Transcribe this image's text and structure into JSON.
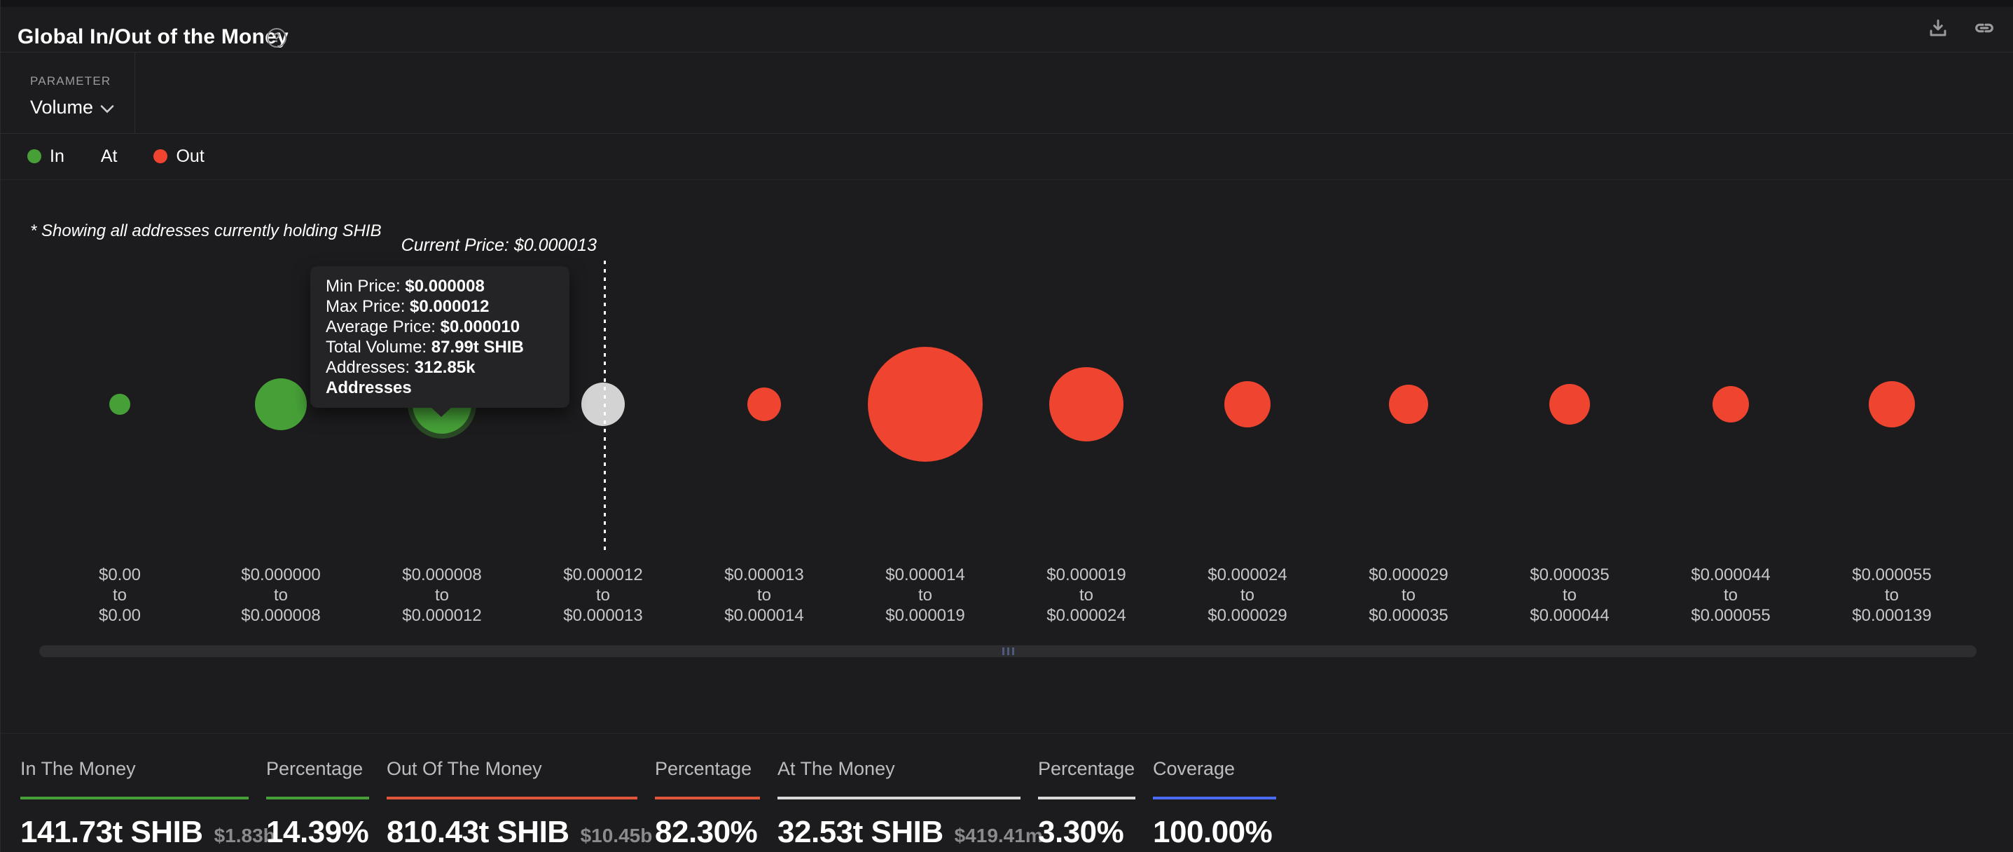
{
  "colors": {
    "in": "#46a037",
    "at": "#d3d3d3",
    "out": "#ee4430",
    "in_underline": "#46a037",
    "out_underline": "#e0563a",
    "at_underline": "#d9d9d9",
    "coverage_underline": "#4a6cf5",
    "grip_blue": "#4c5a7d"
  },
  "header": {
    "title": "Global In/Out of the Money",
    "help_glyph": "?",
    "actions": [
      {
        "name": "download",
        "icon": "download-icon"
      },
      {
        "name": "copy-link",
        "icon": "link-icon"
      }
    ]
  },
  "parameter": {
    "label": "PARAMETER",
    "value": "Volume"
  },
  "legend": [
    {
      "label": "In",
      "color": "#46a037"
    },
    {
      "label": "At",
      "color": null
    },
    {
      "label": "Out",
      "color": "#ee4430"
    }
  ],
  "chart": {
    "note": "* Showing all addresses currently holding SHIB",
    "current_price_label": "Current Price: $0.000013",
    "to_label": "to",
    "tooltip": [
      {
        "label": "Min Price: ",
        "value": "$0.000008"
      },
      {
        "label": "Max Price: ",
        "value": "$0.000012"
      },
      {
        "label": "Average Price: ",
        "value": "$0.000010"
      },
      {
        "label": "Total Volume: ",
        "value": "87.99t SHIB"
      },
      {
        "label": "Addresses: ",
        "value": "312.85k Addresses"
      }
    ]
  },
  "chart_data": {
    "type": "bubble",
    "title": "Global In/Out of the Money",
    "asset": "SHIB",
    "current_price": "$0.000013",
    "current_price_line_at_index": 3,
    "highlighted_point_index": 2,
    "highlighted_point": {
      "min_price": "$0.000008",
      "max_price": "$0.000012",
      "average_price": "$0.000010",
      "total_volume": "87.99t SHIB",
      "addresses": "312.85k Addresses"
    },
    "legend_position": "top-left",
    "grid": false,
    "points": [
      {
        "range_from": "$0.00",
        "range_to": "$0.00",
        "status": "in",
        "radius_px": 15
      },
      {
        "range_from": "$0.000000",
        "range_to": "$0.000008",
        "status": "in",
        "radius_px": 37
      },
      {
        "range_from": "$0.000008",
        "range_to": "$0.000012",
        "status": "in",
        "radius_px": 42
      },
      {
        "range_from": "$0.000012",
        "range_to": "$0.000013",
        "status": "at",
        "radius_px": 31
      },
      {
        "range_from": "$0.000013",
        "range_to": "$0.000014",
        "status": "out",
        "radius_px": 24
      },
      {
        "range_from": "$0.000014",
        "range_to": "$0.000019",
        "status": "out",
        "radius_px": 82
      },
      {
        "range_from": "$0.000019",
        "range_to": "$0.000024",
        "status": "out",
        "radius_px": 53
      },
      {
        "range_from": "$0.000024",
        "range_to": "$0.000029",
        "status": "out",
        "radius_px": 33
      },
      {
        "range_from": "$0.000029",
        "range_to": "$0.000035",
        "status": "out",
        "radius_px": 28
      },
      {
        "range_from": "$0.000035",
        "range_to": "$0.000044",
        "status": "out",
        "radius_px": 29
      },
      {
        "range_from": "$0.000044",
        "range_to": "$0.000055",
        "status": "out",
        "radius_px": 26
      },
      {
        "range_from": "$0.000055",
        "range_to": "$0.000139",
        "status": "out",
        "radius_px": 33
      }
    ]
  },
  "stats": [
    {
      "label": "In The Money",
      "value": "141.73t SHIB",
      "sub_value": "$1.83b",
      "accent": "#46a037"
    },
    {
      "label": "Percentage",
      "value": "14.39%",
      "sub_value": "",
      "accent": "#46a037"
    },
    {
      "label": "Out Of The Money",
      "value": "810.43t SHIB",
      "sub_value": "$10.45b",
      "accent": "#e0563a"
    },
    {
      "label": "Percentage",
      "value": "82.30%",
      "sub_value": "",
      "accent": "#e0563a"
    },
    {
      "label": "At The Money",
      "value": "32.53t SHIB",
      "sub_value": "$419.41m",
      "accent": "#d9d9d9"
    },
    {
      "label": "Percentage",
      "value": "3.30%",
      "sub_value": "",
      "accent": "#d9d9d9"
    },
    {
      "label": "Coverage",
      "value": "100.00%",
      "sub_value": "",
      "accent": "#4a6cf5"
    }
  ]
}
